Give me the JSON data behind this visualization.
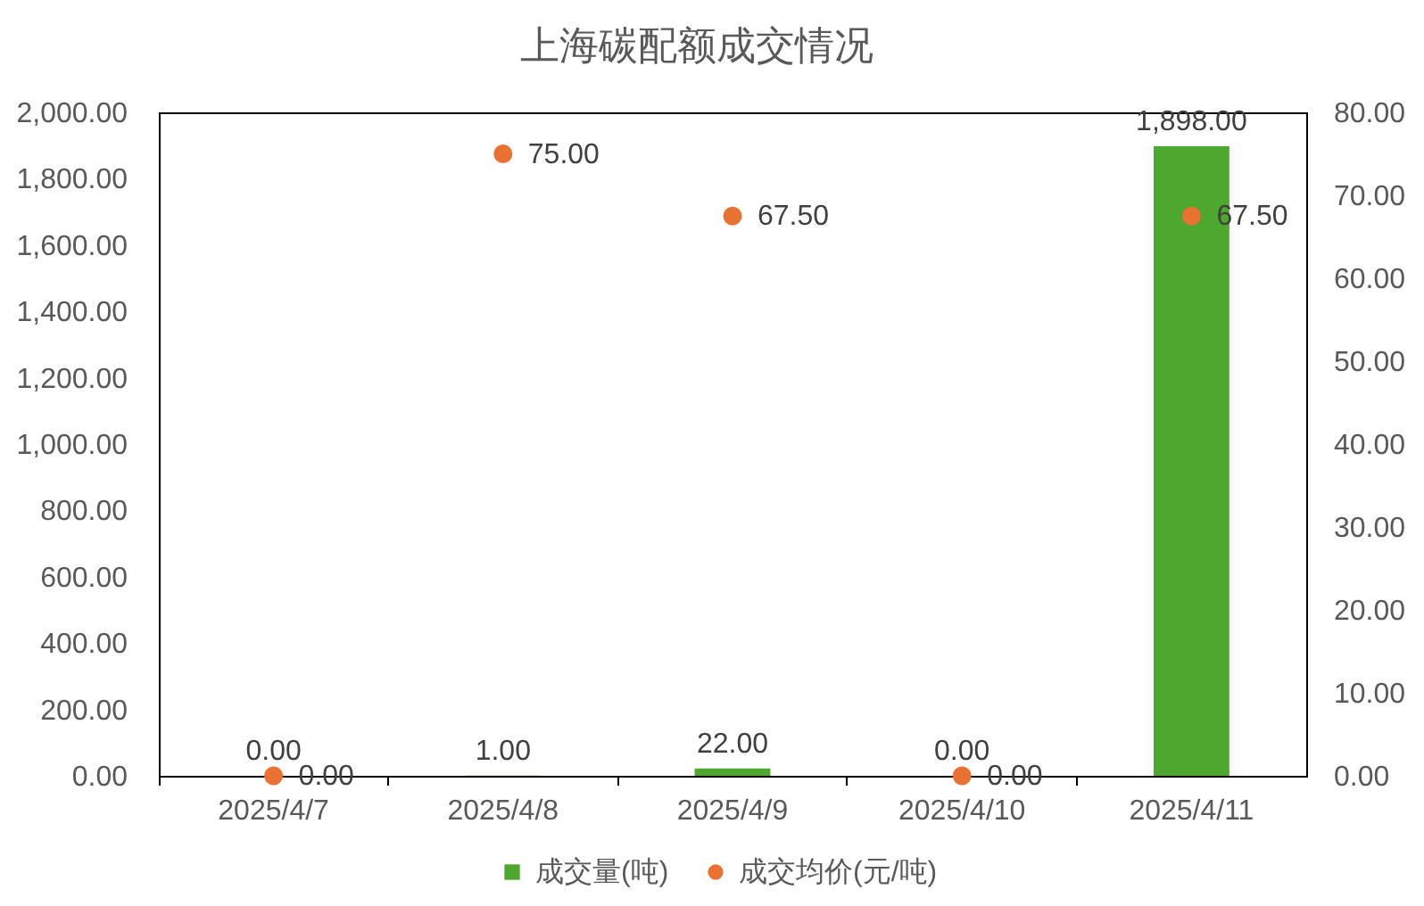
{
  "chart_data": {
    "type": "bar",
    "title": "上海碳配额成交情况",
    "categories": [
      "2025/4/7",
      "2025/4/8",
      "2025/4/9",
      "2025/4/10",
      "2025/4/11"
    ],
    "series": [
      {
        "name": "成交量(吨)",
        "color": "#4ea72e",
        "values": [
          0,
          1,
          22,
          0,
          1898
        ],
        "value_labels": [
          "0.00",
          "1.00",
          "22.00",
          "0.00",
          "1,898.00"
        ]
      },
      {
        "name": "成交均价(元/吨)",
        "type": "scatter",
        "axis": "y2",
        "color": "#e97132",
        "values": [
          0,
          75,
          67.5,
          0,
          67.5
        ],
        "value_labels": [
          "0.00",
          "75.00",
          "67.50",
          "0.00",
          "67.50"
        ]
      }
    ],
    "ylim": [
      0,
      2000
    ],
    "yticks": [
      {
        "value": 0,
        "label": "0.00"
      },
      {
        "value": 200,
        "label": "200.00"
      },
      {
        "value": 400,
        "label": "400.00"
      },
      {
        "value": 600,
        "label": "600.00"
      },
      {
        "value": 800,
        "label": "800.00"
      },
      {
        "value": 1000,
        "label": "1,000.00"
      },
      {
        "value": 1200,
        "label": "1,200.00"
      },
      {
        "value": 1400,
        "label": "1,400.00"
      },
      {
        "value": 1600,
        "label": "1,600.00"
      },
      {
        "value": 1800,
        "label": "1,800.00"
      },
      {
        "value": 2000,
        "label": "2,000.00"
      }
    ],
    "y2lim": [
      0,
      80
    ],
    "y2ticks": [
      {
        "value": 0,
        "label": "0.00"
      },
      {
        "value": 10,
        "label": "10.00"
      },
      {
        "value": 20,
        "label": "20.00"
      },
      {
        "value": 30,
        "label": "30.00"
      },
      {
        "value": 40,
        "label": "40.00"
      },
      {
        "value": 50,
        "label": "50.00"
      },
      {
        "value": 60,
        "label": "60.00"
      },
      {
        "value": 70,
        "label": "70.00"
      },
      {
        "value": 80,
        "label": "80.00"
      }
    ],
    "grid": false,
    "legend": "bottom",
    "marker": "circle"
  }
}
